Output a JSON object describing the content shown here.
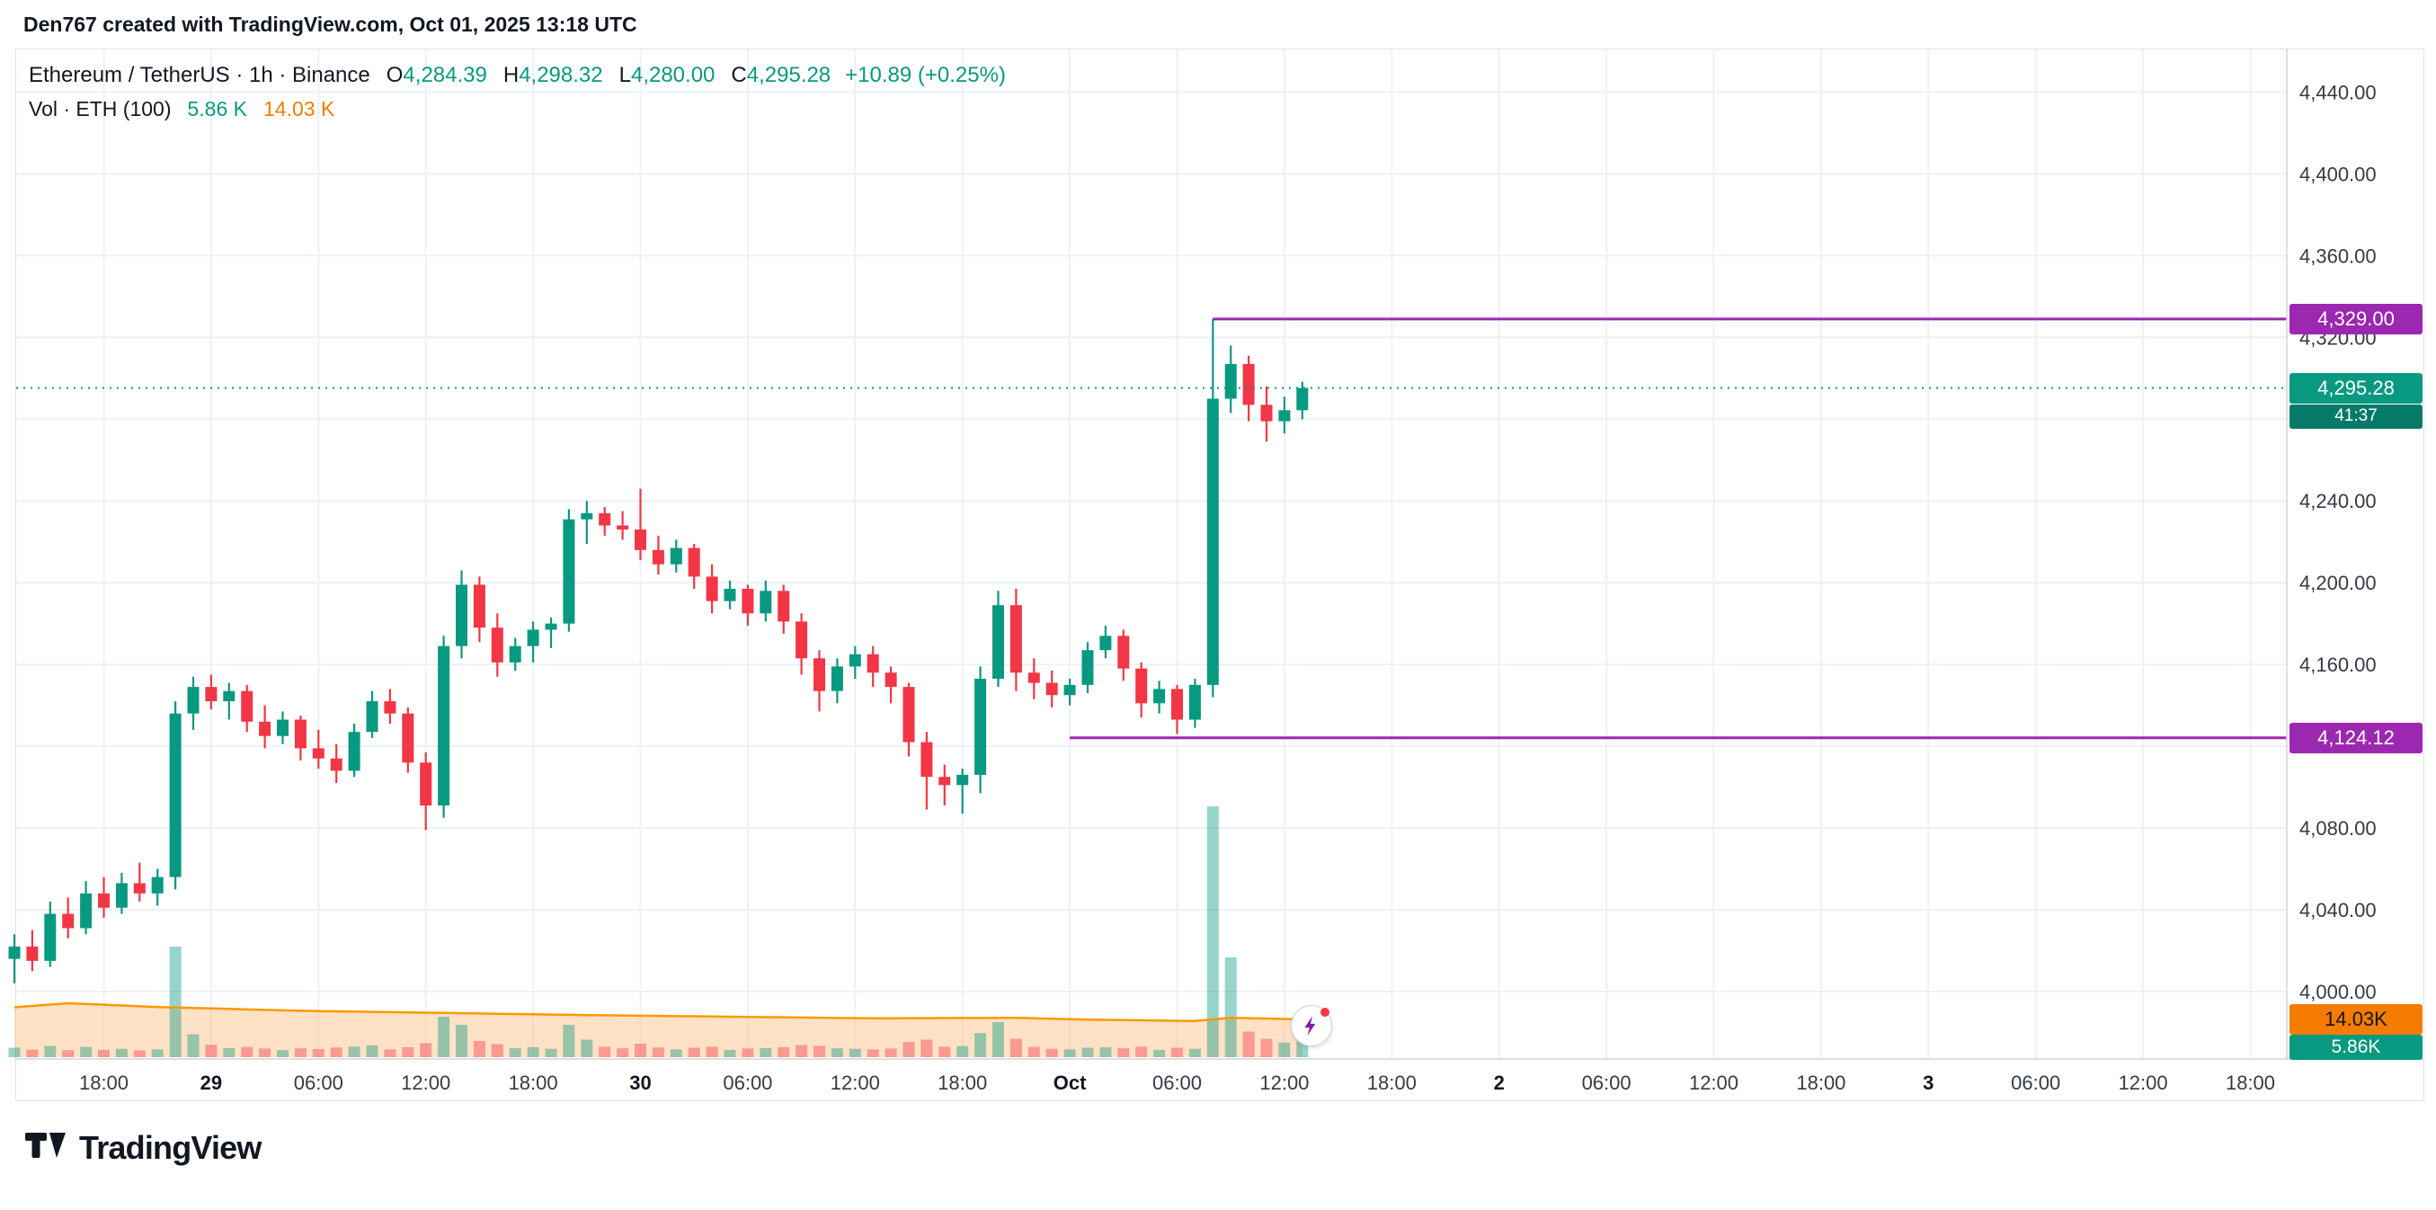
{
  "header": {
    "title": "Den767 created with TradingView.com, Oct 01, 2025 13:18 UTC"
  },
  "legend": {
    "symbol_line": "Ethereum / TetherUS · 1h · Binance",
    "ohlc": [
      {
        "k": "O",
        "v": "4,284.39"
      },
      {
        "k": "H",
        "v": "4,298.32"
      },
      {
        "k": "L",
        "v": "4,280.00"
      },
      {
        "k": "C",
        "v": "4,295.28"
      }
    ],
    "change": "+10.89 (+0.25%)",
    "vol_title": "Vol · ETH (100)",
    "vol_value": "5.86 K",
    "vol_ma_value": "14.03 K"
  },
  "badges": {
    "level_high": {
      "price": 4329.0,
      "text": "4,329.00"
    },
    "last": {
      "price": 4295.28,
      "text": "4,295.28",
      "countdown": "41:37"
    },
    "level_low": {
      "price": 4124.12,
      "text": "4,124.12"
    },
    "vol_ma": {
      "value_k": 14.03,
      "text": "14.03K"
    },
    "vol": {
      "value_k": 5.86,
      "text": "5.86K"
    }
  },
  "price_axis": {
    "labels": [
      {
        "p": 4440,
        "t": "4,440.00"
      },
      {
        "p": 4400,
        "t": "4,400.00"
      },
      {
        "p": 4360,
        "t": "4,360.00"
      },
      {
        "p": 4320,
        "t": "4,320.00"
      },
      {
        "p": 4240,
        "t": "4,240.00"
      },
      {
        "p": 4200,
        "t": "4,200.00"
      },
      {
        "p": 4160,
        "t": "4,160.00"
      },
      {
        "p": 4080,
        "t": "4,080.00"
      },
      {
        "p": 4040,
        "t": "4,040.00"
      },
      {
        "p": 4000,
        "t": "4,000.00"
      }
    ],
    "grid": [
      4440,
      4400,
      4360,
      4320,
      4280,
      4240,
      4200,
      4160,
      4120,
      4080,
      4040,
      4000
    ]
  },
  "time_axis": {
    "labels": [
      {
        "i": 5,
        "t": "18:00",
        "major": false
      },
      {
        "i": 11,
        "t": "29",
        "major": true
      },
      {
        "i": 17,
        "t": "06:00",
        "major": false
      },
      {
        "i": 23,
        "t": "12:00",
        "major": false
      },
      {
        "i": 29,
        "t": "18:00",
        "major": false
      },
      {
        "i": 35,
        "t": "30",
        "major": true
      },
      {
        "i": 41,
        "t": "06:00",
        "major": false
      },
      {
        "i": 47,
        "t": "12:00",
        "major": false
      },
      {
        "i": 53,
        "t": "18:00",
        "major": false
      },
      {
        "i": 59,
        "t": "Oct",
        "major": true
      },
      {
        "i": 65,
        "t": "06:00",
        "major": false
      },
      {
        "i": 71,
        "t": "12:00",
        "major": false
      },
      {
        "i": 77,
        "t": "18:00",
        "major": false
      },
      {
        "i": 83,
        "t": "2",
        "major": true
      },
      {
        "i": 89,
        "t": "06:00",
        "major": false
      },
      {
        "i": 95,
        "t": "12:00",
        "major": false
      },
      {
        "i": 101,
        "t": "18:00",
        "major": false
      },
      {
        "i": 107,
        "t": "3",
        "major": true
      },
      {
        "i": 113,
        "t": "06:00",
        "major": false
      },
      {
        "i": 119,
        "t": "12:00",
        "major": false
      },
      {
        "i": 125,
        "t": "18:00",
        "major": false
      }
    ]
  },
  "chart_data": {
    "type": "candlestick+volume",
    "symbol": "Ethereum / TetherUS",
    "exchange": "Binance",
    "interval": "1h",
    "ylim": [
      3967,
      4460
    ],
    "last_price": 4295.28,
    "countdown": "41:37",
    "volume_current_k": 5.86,
    "volume_ma_current_k": 14.03,
    "levels": [
      {
        "price": 4329.0,
        "start_bar": 67
      },
      {
        "price": 4124.12,
        "start_bar": 59
      }
    ],
    "volume_ma_points": [
      [
        0,
        18.5
      ],
      [
        3,
        20.0
      ],
      [
        8,
        18.6
      ],
      [
        16,
        17.2
      ],
      [
        24,
        16.4
      ],
      [
        32,
        15.6
      ],
      [
        40,
        15.0
      ],
      [
        48,
        14.4
      ],
      [
        56,
        14.6
      ],
      [
        60,
        13.9
      ],
      [
        66,
        13.4
      ],
      [
        68,
        14.6
      ],
      [
        72,
        14.03
      ]
    ],
    "candles": [
      [
        4016,
        4028,
        4004,
        4022,
        3.5
      ],
      [
        4022,
        4030,
        4010,
        4015,
        2.8
      ],
      [
        4015,
        4044,
        4012,
        4038,
        4.2
      ],
      [
        4038,
        4046,
        4026,
        4031,
        2.6
      ],
      [
        4031,
        4054,
        4028,
        4048,
        3.8
      ],
      [
        4048,
        4056,
        4036,
        4041,
        2.7
      ],
      [
        4041,
        4058,
        4038,
        4053,
        3.1
      ],
      [
        4053,
        4063,
        4044,
        4048,
        2.5
      ],
      [
        4048,
        4060,
        4042,
        4056,
        2.9
      ],
      [
        4056,
        4142,
        4050,
        4136,
        41.0
      ],
      [
        4136,
        4154,
        4128,
        4149,
        8.5
      ],
      [
        4149,
        4155,
        4138,
        4142,
        4.6
      ],
      [
        4142,
        4151,
        4133,
        4147,
        3.4
      ],
      [
        4147,
        4150,
        4127,
        4132,
        3.8
      ],
      [
        4132,
        4140,
        4119,
        4125,
        3.2
      ],
      [
        4125,
        4137,
        4121,
        4133,
        2.6
      ],
      [
        4133,
        4135,
        4113,
        4119,
        3.3
      ],
      [
        4119,
        4128,
        4109,
        4114,
        3.0
      ],
      [
        4114,
        4121,
        4102,
        4108,
        3.6
      ],
      [
        4108,
        4131,
        4105,
        4127,
        3.9
      ],
      [
        4127,
        4147,
        4124,
        4142,
        4.4
      ],
      [
        4142,
        4148,
        4131,
        4136,
        2.9
      ],
      [
        4136,
        4139,
        4107,
        4112,
        3.7
      ],
      [
        4112,
        4117,
        4079,
        4091,
        5.2
      ],
      [
        4091,
        4174,
        4085,
        4169,
        15.0
      ],
      [
        4169,
        4206,
        4163,
        4199,
        12.0
      ],
      [
        4199,
        4203,
        4171,
        4178,
        6.0
      ],
      [
        4178,
        4185,
        4154,
        4161,
        4.8
      ],
      [
        4161,
        4173,
        4157,
        4169,
        3.4
      ],
      [
        4169,
        4181,
        4161,
        4177,
        3.7
      ],
      [
        4177,
        4183,
        4168,
        4180,
        3.1
      ],
      [
        4180,
        4236,
        4176,
        4231,
        12.0
      ],
      [
        4231,
        4240,
        4219,
        4234,
        6.5
      ],
      [
        4234,
        4237,
        4223,
        4228,
        3.9
      ],
      [
        4228,
        4235,
        4221,
        4226,
        3.3
      ],
      [
        4226,
        4246,
        4211,
        4216,
        5.0
      ],
      [
        4216,
        4223,
        4204,
        4209,
        3.6
      ],
      [
        4209,
        4221,
        4205,
        4217,
        2.9
      ],
      [
        4217,
        4219,
        4197,
        4203,
        3.5
      ],
      [
        4203,
        4209,
        4185,
        4191,
        3.9
      ],
      [
        4191,
        4201,
        4187,
        4197,
        2.7
      ],
      [
        4197,
        4199,
        4179,
        4185,
        3.2
      ],
      [
        4185,
        4201,
        4181,
        4196,
        3.4
      ],
      [
        4196,
        4199,
        4175,
        4181,
        3.7
      ],
      [
        4181,
        4185,
        4155,
        4163,
        4.5
      ],
      [
        4163,
        4167,
        4137,
        4147,
        4.2
      ],
      [
        4147,
        4163,
        4141,
        4159,
        3.3
      ],
      [
        4159,
        4169,
        4153,
        4165,
        3.1
      ],
      [
        4165,
        4169,
        4149,
        4156,
        2.9
      ],
      [
        4156,
        4159,
        4141,
        4149,
        3.2
      ],
      [
        4149,
        4151,
        4115,
        4122,
        5.6
      ],
      [
        4122,
        4127,
        4089,
        4105,
        6.5
      ],
      [
        4105,
        4111,
        4091,
        4101,
        3.9
      ],
      [
        4101,
        4109,
        4087,
        4106,
        4.1
      ],
      [
        4106,
        4159,
        4097,
        4153,
        9.0
      ],
      [
        4153,
        4196,
        4149,
        4189,
        13.0
      ],
      [
        4189,
        4197,
        4147,
        4156,
        6.8
      ],
      [
        4156,
        4163,
        4143,
        4151,
        3.8
      ],
      [
        4151,
        4157,
        4139,
        4145,
        3.1
      ],
      [
        4145,
        4153,
        4140,
        4150,
        2.9
      ],
      [
        4150,
        4171,
        4146,
        4167,
        3.5
      ],
      [
        4167,
        4179,
        4163,
        4174,
        3.7
      ],
      [
        4174,
        4177,
        4152,
        4158,
        3.3
      ],
      [
        4158,
        4161,
        4134,
        4141,
        3.9
      ],
      [
        4141,
        4152,
        4136,
        4148,
        2.7
      ],
      [
        4148,
        4150,
        4126,
        4133,
        3.5
      ],
      [
        4133,
        4153,
        4129,
        4150,
        3.1
      ],
      [
        4150,
        4329,
        4144,
        4290,
        93.0
      ],
      [
        4290,
        4316,
        4283,
        4307,
        37.0
      ],
      [
        4307,
        4311,
        4279,
        4287,
        9.5
      ],
      [
        4287,
        4296,
        4269,
        4279,
        6.8
      ],
      [
        4279,
        4291,
        4273,
        4284.39,
        5.4
      ],
      [
        4284.39,
        4298.32,
        4280,
        4295.28,
        5.86
      ]
    ]
  },
  "colors": {
    "up": "#089981",
    "down": "#f23645",
    "vol_up": "rgba(8,153,129,0.42)",
    "vol_down": "rgba(242,54,69,0.42)",
    "ma_strong": "#f57c00",
    "ma_line": "#ff9800",
    "ma_fill": "rgba(255,171,91,0.35)",
    "level": "#9c27b0",
    "countdown": "#067a68",
    "grid": "#eef1f6",
    "axis_text": "#363a45",
    "separator": "#d1d4dc"
  },
  "footer": {
    "brand": "TradingView"
  }
}
